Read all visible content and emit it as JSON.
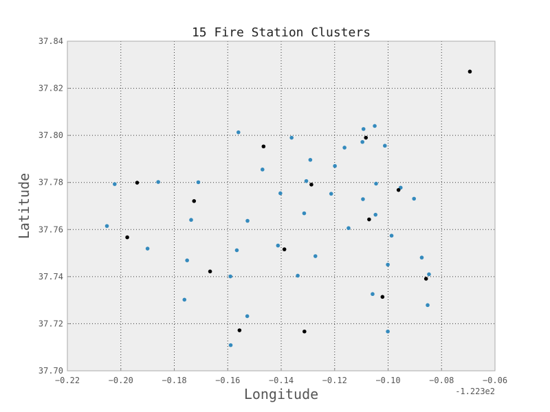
{
  "chart_data": {
    "type": "scatter",
    "title": "15 Fire Station Clusters",
    "xlabel": "Longitude",
    "ylabel": "Latitude",
    "x_offset_label": "-1.223e2",
    "x_offset": -122.3,
    "xlim": [
      -0.22,
      -0.06
    ],
    "ylim": [
      37.7,
      37.84
    ],
    "x_ticks": [
      -0.22,
      -0.2,
      -0.18,
      -0.16,
      -0.14,
      -0.12,
      -0.1,
      -0.08,
      -0.06
    ],
    "x_tick_labels": [
      "−0.22",
      "−0.20",
      "−0.18",
      "−0.16",
      "−0.14",
      "−0.12",
      "−0.10",
      "−0.08",
      "−0.06"
    ],
    "y_ticks": [
      37.7,
      37.72,
      37.74,
      37.76,
      37.78,
      37.8,
      37.82,
      37.84
    ],
    "y_tick_labels": [
      "37.70",
      "37.72",
      "37.74",
      "37.76",
      "37.78",
      "37.80",
      "37.82",
      "37.84"
    ],
    "grid": true,
    "background_color": "#eeeeee",
    "series": [
      {
        "color": "#348abd",
        "points": [
          [
            -0.2052,
            37.7615
          ],
          [
            -0.2023,
            37.7793
          ],
          [
            -0.19,
            37.7519
          ],
          [
            -0.186,
            37.7802
          ],
          [
            -0.171,
            37.7801
          ],
          [
            -0.1737,
            37.7641
          ],
          [
            -0.1752,
            37.7469
          ],
          [
            -0.1762,
            37.7302
          ],
          [
            -0.159,
            37.7401
          ],
          [
            -0.1589,
            37.7109
          ],
          [
            -0.1566,
            37.7512
          ],
          [
            -0.156,
            37.8013
          ],
          [
            -0.1526,
            37.7637
          ],
          [
            -0.1527,
            37.7232
          ],
          [
            -0.147,
            37.7855
          ],
          [
            -0.1412,
            37.7532
          ],
          [
            -0.1403,
            37.7754
          ],
          [
            -0.1361,
            37.799
          ],
          [
            -0.1338,
            37.7404
          ],
          [
            -0.1314,
            37.7669
          ],
          [
            -0.1306,
            37.7806
          ],
          [
            -0.1291,
            37.7896
          ],
          [
            -0.1272,
            37.7487
          ],
          [
            -0.1213,
            37.7752
          ],
          [
            -0.1199,
            37.787
          ],
          [
            -0.1163,
            37.7948
          ],
          [
            -0.1148,
            37.7606
          ],
          [
            -0.1096,
            37.7972
          ],
          [
            -0.1092,
            37.8027
          ],
          [
            -0.1094,
            37.7729
          ],
          [
            -0.1058,
            37.7326
          ],
          [
            -0.105,
            37.804
          ],
          [
            -0.1047,
            37.7663
          ],
          [
            -0.1045,
            37.7795
          ],
          [
            -0.1012,
            37.7956
          ],
          [
            -0.1001,
            37.7451
          ],
          [
            -0.0987,
            37.7574
          ],
          [
            -0.1001,
            37.7167
          ],
          [
            -0.0953,
            37.7778
          ],
          [
            -0.0903,
            37.7731
          ],
          [
            -0.0874,
            37.7481
          ],
          [
            -0.0852,
            37.7279
          ],
          [
            -0.0847,
            37.741
          ]
        ]
      },
      {
        "color": "#000000",
        "points": [
          [
            -0.0694,
            37.8271
          ],
          [
            -0.1976,
            37.7567
          ],
          [
            -0.1939,
            37.7799
          ],
          [
            -0.1726,
            37.7721
          ],
          [
            -0.1666,
            37.7422
          ],
          [
            -0.1556,
            37.7172
          ],
          [
            -0.1466,
            37.7953
          ],
          [
            -0.1388,
            37.7516
          ],
          [
            -0.1313,
            37.7167
          ],
          [
            -0.1287,
            37.7791
          ],
          [
            -0.1083,
            37.799
          ],
          [
            -0.1071,
            37.7643
          ],
          [
            -0.1021,
            37.7314
          ],
          [
            -0.0961,
            37.7768
          ],
          [
            -0.0858,
            37.7391
          ]
        ]
      }
    ]
  }
}
